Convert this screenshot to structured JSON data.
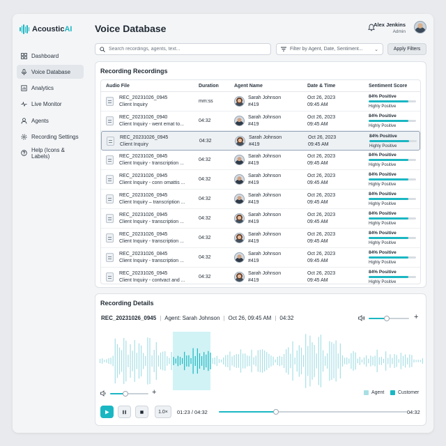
{
  "app": {
    "brand_prefix": "Acoustic",
    "brand_suffix": "AI",
    "accent": "#1ab7c3"
  },
  "sidebar": {
    "items": [
      {
        "label": "Dashboard",
        "icon": "dashboard-icon"
      },
      {
        "label": "Voice Database",
        "icon": "microphone-icon",
        "active": true
      },
      {
        "label": "Analytics",
        "icon": "bar-chart-icon"
      },
      {
        "label": "Live Monitor",
        "icon": "pulse-icon"
      },
      {
        "label": "Agents",
        "icon": "user-icon"
      },
      {
        "label": "Recording Settings",
        "icon": "gear-icon"
      },
      {
        "label": "Help (Icons & Labels)",
        "icon": "help-icon"
      }
    ]
  },
  "header": {
    "title": "Voice Database",
    "user_name": "Alex Jenkins",
    "user_role": "Admin"
  },
  "toolbar": {
    "search_placeholder": "Search recordings, agents, text...",
    "filter_placeholder": "Filter by Agent, Date, Sentiment...",
    "apply_label": "Apply Filters"
  },
  "recordings": {
    "title": "Recording Recordings",
    "columns": [
      "Audio File",
      "Duration",
      "Agent Name",
      "Date & Time",
      "Sentiment Score"
    ],
    "rows": [
      {
        "file": "REC_20231026_0945",
        "desc": "Client Inquiry",
        "duration": "mm:ss",
        "agent": "Sarah Johnson",
        "agent_id": "#419",
        "date": "Oct 26, 2023",
        "time": "09:45 AM",
        "sentiment": "84% Positive",
        "sentiment_value": 0.84,
        "sentiment_label": "Highly Positive",
        "avatar": "f"
      },
      {
        "file": "REC_20231026_0940",
        "desc": "Client Inquiry - went emat to...",
        "duration": "04:32",
        "agent": "Sarah Johnson",
        "agent_id": "#419",
        "date": "Oct 26, 2023",
        "time": "09:45 AM",
        "sentiment": "84% Positive",
        "sentiment_value": 0.84,
        "sentiment_label": "Highly Positive",
        "avatar": "m"
      },
      {
        "file": "REC_20231026_0945",
        "desc": "Client Inquiry",
        "duration": "04:32",
        "agent": "Sarah Johnson",
        "agent_id": "#419",
        "date": "Oct 26, 2023",
        "time": "09:45 AM",
        "sentiment": "84% Positive",
        "sentiment_value": 0.84,
        "sentiment_label": "Highly Positive",
        "avatar": "f",
        "selected": true
      },
      {
        "file": "REC_20231026_0845",
        "desc": "Client Inquiry - transcription ...",
        "duration": "04:32",
        "agent": "Sarah Johnson",
        "agent_id": "#419",
        "date": "Oct 26, 2023",
        "time": "09:45 AM",
        "sentiment": "84% Positive",
        "sentiment_value": 0.84,
        "sentiment_label": "Highly Positive",
        "avatar": "m"
      },
      {
        "file": "REC_20231026_0945",
        "desc": "Client Inquiry - conn omattis ...",
        "duration": "04:32",
        "agent": "Sarah Johnson",
        "agent_id": "#419",
        "date": "Oct 26, 2023",
        "time": "09:45 AM",
        "sentiment": "84% Positive",
        "sentiment_value": 0.84,
        "sentiment_label": "Highly Positive",
        "avatar": "m"
      },
      {
        "file": "REC_20231026_0945",
        "desc": "Client Inquiry – transcription ...",
        "duration": "04:32",
        "agent": "Sarah Johnson",
        "agent_id": "#419",
        "date": "Oct 26, 2023",
        "time": "09:45 AM",
        "sentiment": "84% Positive",
        "sentiment_value": 0.84,
        "sentiment_label": "Highly Positive",
        "avatar": "m"
      },
      {
        "file": "REC_20231026_0945",
        "desc": "Client Inquiry - transcription ...",
        "duration": "04:32",
        "agent": "Sarah Johnson",
        "agent_id": "#419",
        "date": "Oct 26, 2023",
        "time": "09:45 AM",
        "sentiment": "84% Positive",
        "sentiment_value": 0.84,
        "sentiment_label": "Highly Positive",
        "avatar": "f"
      },
      {
        "file": "REC_20231026_0945",
        "desc": "Client Inquiry - transcription ...",
        "duration": "04:32",
        "agent": "Sarah Johnson",
        "agent_id": "#419",
        "date": "Oct 26, 2023",
        "time": "09:45 AM",
        "sentiment": "84% Positive",
        "sentiment_value": 0.84,
        "sentiment_label": "Highly Positive",
        "avatar": "f"
      },
      {
        "file": "REC_20231026_0845",
        "desc": "Client Inquiry - transcription ...",
        "duration": "04:32",
        "agent": "Sarah Johnson",
        "agent_id": "#419",
        "date": "Oct 26, 2023",
        "time": "09:45 AM",
        "sentiment": "84% Positive",
        "sentiment_value": 0.84,
        "sentiment_label": "Highly Positive",
        "avatar": "m"
      },
      {
        "file": "REC_20231026_0945",
        "desc": "Client Inquiry - contvact and ...",
        "duration": "04:32",
        "agent": "Sarah Johnson",
        "agent_id": "#419",
        "date": "Oct 26, 2023",
        "time": "09:45 AM",
        "sentiment": "84% Positive",
        "sentiment_value": 0.84,
        "sentiment_label": "Highly Positive",
        "avatar": "f"
      }
    ]
  },
  "details": {
    "title": "Recording Details",
    "file": "REC_20231026_0945",
    "agent": "Agent: Sarah Johnson",
    "datetime": "Oct 26, 09:45 AM",
    "duration": "04:32",
    "top_volume": 0.45,
    "bottom_volume": 0.4,
    "legend_agent": "Agent",
    "legend_customer": "Customer",
    "agent_color": "#a8dfe5",
    "customer_color": "#1ab7c3",
    "speed": "1.0×",
    "current": "01:23 / 04:32",
    "end": "04:32",
    "progress": 0.305
  }
}
